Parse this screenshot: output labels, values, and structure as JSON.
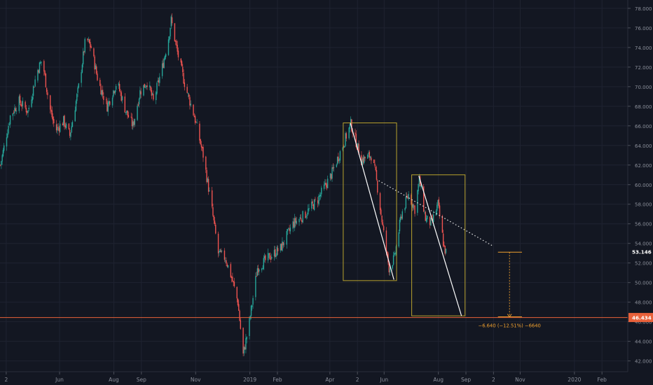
{
  "theme": {
    "background": "#131722",
    "grid": "#1f2331",
    "axis_text": "#8a8e99",
    "up_color": "#26a69a",
    "down_color": "#ef5350",
    "box_color": "#b8a22e",
    "trend_color": "#ffffff",
    "level_color": "#e8613a",
    "measure_color": "#f0a02e"
  },
  "chart_data": {
    "type": "candlestick",
    "title": "",
    "xlabel": "",
    "ylabel": "",
    "ylim": [
      40.9,
      78.85
    ],
    "y_ticks": [
      42,
      44,
      46,
      48,
      50,
      52,
      54,
      56,
      58,
      60,
      62,
      64,
      66,
      68,
      70,
      72,
      74,
      76,
      78
    ],
    "y_tick_labels": [
      "42.000",
      "44.000",
      "46.000",
      "48.000",
      "50.000",
      "52.000",
      "54.000",
      "56.000",
      "58.000",
      "60.000",
      "62.000",
      "64.000",
      "66.000",
      "68.000",
      "70.000",
      "72.000",
      "74.000",
      "76.000",
      "78.000"
    ],
    "x_range": [
      "2018-03-26",
      "2020-03-01"
    ],
    "x_ticks": [
      {
        "date": "2018-04-02",
        "label": "2"
      },
      {
        "date": "2018-06-01",
        "label": "Jun"
      },
      {
        "date": "2018-08-01",
        "label": "Aug"
      },
      {
        "date": "2018-09-01",
        "label": "Sep"
      },
      {
        "date": "2018-11-01",
        "label": "Nov"
      },
      {
        "date": "2019-01-01",
        "label": "2019"
      },
      {
        "date": "2019-02-01",
        "label": "Feb"
      },
      {
        "date": "2019-04-01",
        "label": "Apr"
      },
      {
        "date": "2019-05-02",
        "label": "2"
      },
      {
        "date": "2019-06-01",
        "label": "Jun"
      },
      {
        "date": "2019-08-01",
        "label": "Aug"
      },
      {
        "date": "2019-09-01",
        "label": "Sep"
      },
      {
        "date": "2019-10-02",
        "label": "2"
      },
      {
        "date": "2019-11-01",
        "label": "Nov"
      },
      {
        "date": "2020-01-01",
        "label": "2020"
      },
      {
        "date": "2020-02-01",
        "label": "Feb"
      }
    ],
    "price_path": [
      [
        "2018-03-26",
        62.0
      ],
      [
        "2018-04-06",
        67.0
      ],
      [
        "2018-04-16",
        68.5
      ],
      [
        "2018-04-26",
        67.5
      ],
      [
        "2018-05-06",
        71.5
      ],
      [
        "2018-05-12",
        72.8
      ],
      [
        "2018-05-20",
        68.0
      ],
      [
        "2018-05-27",
        65.5
      ],
      [
        "2018-06-05",
        66.5
      ],
      [
        "2018-06-12",
        65.0
      ],
      [
        "2018-06-22",
        70.0
      ],
      [
        "2018-06-30",
        75.0
      ],
      [
        "2018-07-06",
        74.0
      ],
      [
        "2018-07-14",
        70.5
      ],
      [
        "2018-07-24",
        68.0
      ],
      [
        "2018-08-04",
        70.5
      ],
      [
        "2018-08-14",
        67.5
      ],
      [
        "2018-08-22",
        66.0
      ],
      [
        "2018-08-30",
        69.5
      ],
      [
        "2018-09-07",
        70.5
      ],
      [
        "2018-09-14",
        68.5
      ],
      [
        "2018-09-24",
        72.0
      ],
      [
        "2018-10-01",
        75.0
      ],
      [
        "2018-10-04",
        76.8
      ],
      [
        "2018-10-11",
        73.5
      ],
      [
        "2018-10-20",
        70.0
      ],
      [
        "2018-10-30",
        67.0
      ],
      [
        "2018-11-09",
        63.0
      ],
      [
        "2018-11-18",
        58.0
      ],
      [
        "2018-11-26",
        53.0
      ],
      [
        "2018-12-04",
        52.5
      ],
      [
        "2018-12-11",
        50.5
      ],
      [
        "2018-12-18",
        48.0
      ],
      [
        "2018-12-24",
        42.6
      ],
      [
        "2018-12-31",
        46.0
      ],
      [
        "2019-01-09",
        51.5
      ],
      [
        "2019-01-21",
        52.5
      ],
      [
        "2019-02-04",
        53.5
      ],
      [
        "2019-02-18",
        56.0
      ],
      [
        "2019-03-04",
        57.0
      ],
      [
        "2019-03-18",
        58.5
      ],
      [
        "2019-04-02",
        61.0
      ],
      [
        "2019-04-15",
        64.0
      ],
      [
        "2019-04-24",
        66.2
      ],
      [
        "2019-05-06",
        62.5
      ],
      [
        "2019-05-17",
        63.0
      ],
      [
        "2019-05-22",
        61.0
      ],
      [
        "2019-05-31",
        55.0
      ],
      [
        "2019-06-06",
        51.5
      ],
      [
        "2019-06-12",
        52.5
      ],
      [
        "2019-06-20",
        57.0
      ],
      [
        "2019-06-28",
        59.0
      ],
      [
        "2019-07-05",
        57.5
      ],
      [
        "2019-07-10",
        60.5
      ],
      [
        "2019-07-17",
        56.5
      ],
      [
        "2019-07-24",
        56.0
      ],
      [
        "2019-07-31",
        58.0
      ],
      [
        "2019-08-07",
        53.5
      ],
      [
        "2019-08-09",
        53.1
      ]
    ],
    "series": [
      {
        "name": "",
        "type": "candles",
        "source": "price_path"
      }
    ],
    "annotations": {
      "boxes": [
        {
          "x0": "2019-04-16",
          "x1": "2019-06-15",
          "y0": 50.2,
          "y1": 66.3
        },
        {
          "x0": "2019-07-02",
          "x1": "2019-08-31",
          "y0": 46.6,
          "y1": 61.0
        }
      ],
      "trend_lines": [
        {
          "x0": "2019-04-24",
          "y0": 66.3,
          "x1": "2019-06-12",
          "y1": 50.3
        },
        {
          "x0": "2019-07-10",
          "y0": 60.9,
          "x1": "2019-08-27",
          "y1": 46.6
        }
      ],
      "dotted_line": {
        "x0": "2019-05-26",
        "y0": 60.4,
        "x1": "2019-10-02",
        "y1": 53.7
      },
      "horizontal_level": {
        "y": 46.434,
        "label": "46.434"
      },
      "last_price": {
        "y": 53.146,
        "label": "53.146"
      },
      "measure": {
        "x0": "2019-10-07",
        "x1": "2019-11-03",
        "x_mid": "2019-10-20",
        "y_top": 53.1,
        "y_bottom": 46.5,
        "label": "−6.640 (−12.51%) −6640"
      }
    }
  }
}
